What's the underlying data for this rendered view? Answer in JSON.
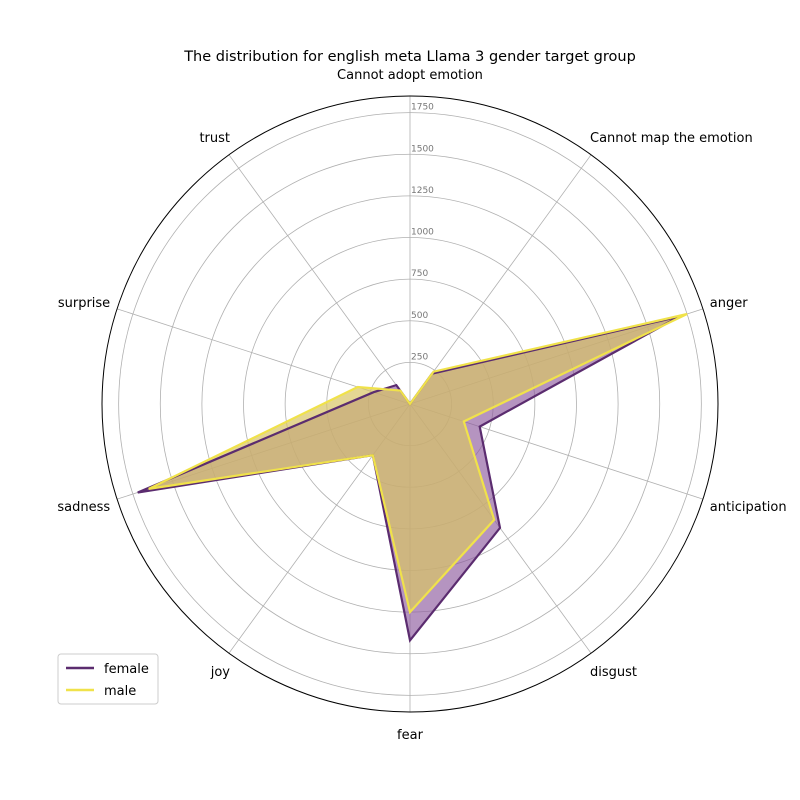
{
  "chart_data": {
    "type": "radar",
    "title": "The distribution for english meta Llama 3 gender target group",
    "categories": [
      "Cannot adopt emotion",
      "Cannot map the emotion",
      "anger",
      "anticipation",
      "disgust",
      "fear",
      "joy",
      "sadness",
      "surprise",
      "trust"
    ],
    "rlim": [
      0,
      1850
    ],
    "rticks": [
      250,
      500,
      750,
      1000,
      1250,
      1500,
      1750
    ],
    "grid": true,
    "legend_position": "lower-left",
    "series": [
      {
        "name": "female",
        "values": [
          0,
          225,
          1700,
          440,
          920,
          1420,
          380,
          1720,
          230,
          140
        ],
        "line_color": "#5b2c6f",
        "fill_color": "#8e5a9e",
        "fill_opacity": 0.65
      },
      {
        "name": "male",
        "values": [
          0,
          240,
          1750,
          340,
          860,
          1250,
          380,
          1650,
          330,
          100
        ],
        "line_color": "#f0e24a",
        "fill_color": "#d8c465",
        "fill_opacity": 0.7
      }
    ]
  }
}
